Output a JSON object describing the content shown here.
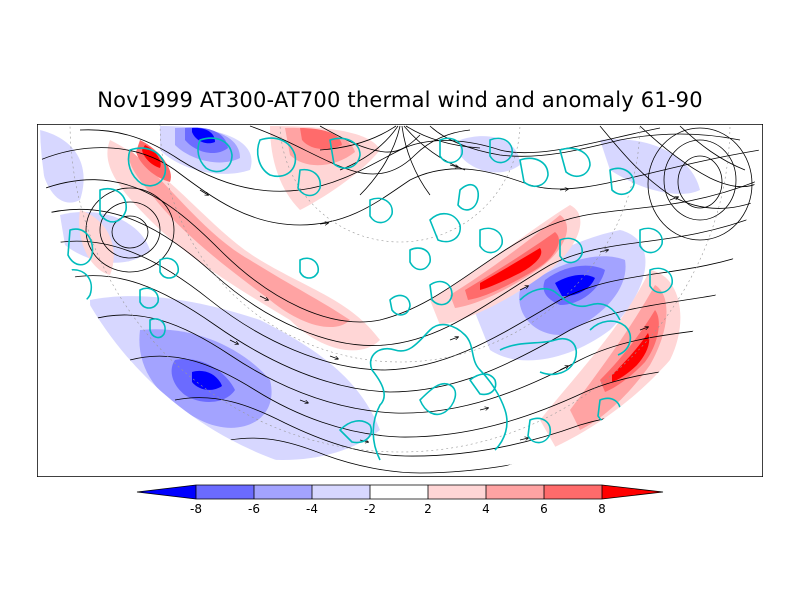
{
  "title": "Nov1999 AT300-AT700 thermal wind and anomaly 61-90",
  "colorbar": {
    "labels": [
      "-8",
      "-6",
      "-4",
      "-2",
      "2",
      "4",
      "6",
      "8"
    ],
    "colors": [
      "#0000ff",
      "#6b6bff",
      "#a3a3ff",
      "#d7d7ff",
      "#ffffff",
      "#ffd6d6",
      "#ffa3a3",
      "#ff6b6b",
      "#ff0000"
    ]
  },
  "anomaly_colors": {
    "neg_strong": "#0000ff",
    "neg_3": "#6b6bff",
    "neg_2": "#a3a3ff",
    "neg_1": "#d7d7ff",
    "pos_1": "#ffd6d6",
    "pos_2": "#ffa3a3",
    "pos_3": "#ff6b6b",
    "pos_strong": "#ff0000"
  },
  "streamline_color": "#000000",
  "coastline_color": "#00bcbc"
}
